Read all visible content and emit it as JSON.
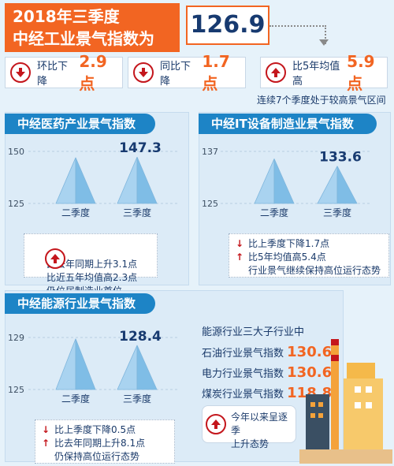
{
  "header": {
    "title_line1": "2018年三季度",
    "title_line2": "中经工业景气指数为",
    "value": "126.9"
  },
  "stats": [
    {
      "label": "环比下降",
      "value": "2.9点",
      "direction": "down"
    },
    {
      "label": "同比下降",
      "value": "1.7点",
      "direction": "down"
    },
    {
      "label": "比5年均值高",
      "value": "5.9点",
      "direction": "up"
    }
  ],
  "stats_note": "连续7个季度处于较高景气区间",
  "panels": {
    "medicine": {
      "title": "中经医药产业景气指数",
      "notes": [
        "比去年同期上升3.1点",
        "比近五年均值高2.3点",
        "仍位居制造业首位"
      ],
      "note_arrows": [
        "up",
        "",
        ""
      ]
    },
    "it": {
      "title": "中经IT设备制造业景气指数",
      "notes": [
        "比上季度下降1.7点",
        "比5年均值高5.4点",
        "行业景气继续保持高位运行态势"
      ],
      "note_arrows": [
        "down",
        "up",
        ""
      ]
    },
    "energy": {
      "title": "中经能源行业景气指数",
      "notes": [
        "比上季度下降0.5点",
        "比去年同期上升8.1点",
        "仍保持高位运行态势"
      ],
      "note_arrows": [
        "down",
        "up",
        ""
      ],
      "sub_title": "能源行业三大子行业中",
      "sub_rows": [
        {
          "label": "石油行业景气指数",
          "value": "130.6"
        },
        {
          "label": "电力行业景气指数",
          "value": "130.6"
        },
        {
          "label": "煤炭行业景气指数",
          "value": "118.8"
        }
      ],
      "trend_note_line1": "今年以来呈逐季",
      "trend_note_line2": "上升态势"
    }
  },
  "colors": {
    "orange": "#f26522",
    "blue": "#1d84c6",
    "red": "#c4161c",
    "navy": "#173a70"
  },
  "chart_data": [
    {
      "type": "bar",
      "title": "中经医药产业景气指数",
      "categories": [
        "二季度",
        "三季度"
      ],
      "values": [
        147.0,
        147.3
      ],
      "value_labels": [
        "",
        "147.3"
      ],
      "yticks": [
        "150",
        "125"
      ],
      "ylim": [
        125,
        150
      ]
    },
    {
      "type": "bar",
      "title": "中经IT设备制造业景气指数",
      "categories": [
        "二季度",
        "三季度"
      ],
      "values": [
        135.3,
        133.6
      ],
      "value_labels": [
        "",
        "133.6"
      ],
      "yticks": [
        "137",
        "125"
      ],
      "ylim": [
        125,
        137
      ]
    },
    {
      "type": "bar",
      "title": "中经能源行业景气指数",
      "categories": [
        "二季度",
        "三季度"
      ],
      "values": [
        128.9,
        128.4
      ],
      "value_labels": [
        "",
        "128.4"
      ],
      "yticks": [
        "129",
        "125"
      ],
      "ylim": [
        125,
        129
      ]
    }
  ]
}
